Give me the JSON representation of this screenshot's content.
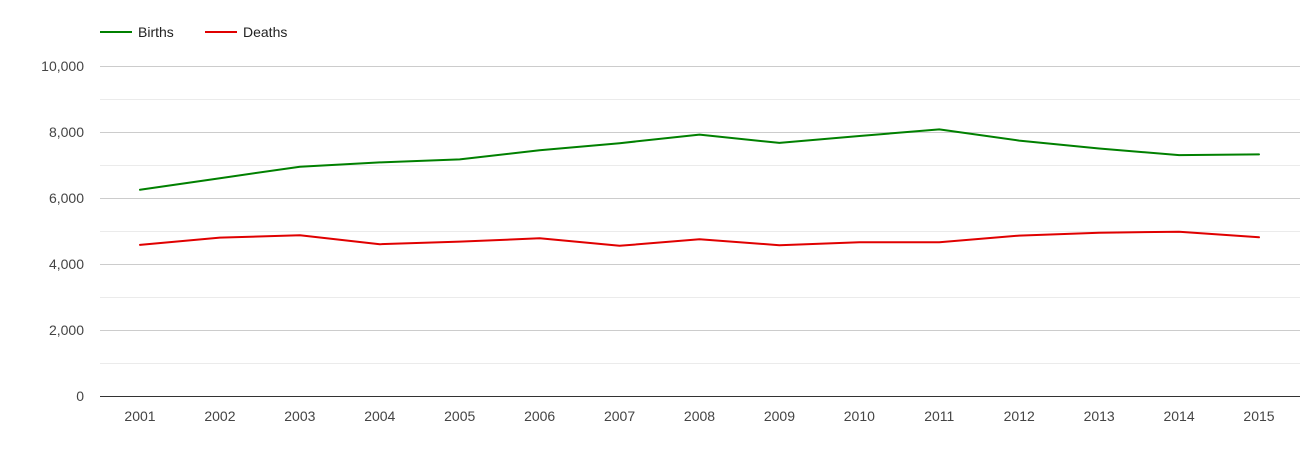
{
  "chart_data": {
    "type": "line",
    "title": "",
    "xlabel": "",
    "ylabel": "",
    "categories": [
      "2001",
      "2002",
      "2003",
      "2004",
      "2005",
      "2006",
      "2007",
      "2008",
      "2009",
      "2010",
      "2011",
      "2012",
      "2013",
      "2014",
      "2015"
    ],
    "series": [
      {
        "name": "Births",
        "color": "#008000",
        "values": [
          6250,
          6600,
          6950,
          7080,
          7170,
          7450,
          7660,
          7920,
          7670,
          7880,
          8080,
          7740,
          7500,
          7300,
          7320
        ]
      },
      {
        "name": "Deaths",
        "color": "#e00000",
        "values": [
          4580,
          4800,
          4870,
          4600,
          4680,
          4780,
          4550,
          4750,
          4570,
          4660,
          4660,
          4860,
          4950,
          4980,
          4810
        ]
      }
    ],
    "ylim": [
      0,
      10000
    ],
    "yticks": [
      0,
      2000,
      4000,
      6000,
      8000,
      10000
    ],
    "ytick_labels": [
      "0",
      "2,000",
      "4,000",
      "6,000",
      "8,000",
      "10,000"
    ],
    "grid": true,
    "legend_position": "top-left"
  }
}
